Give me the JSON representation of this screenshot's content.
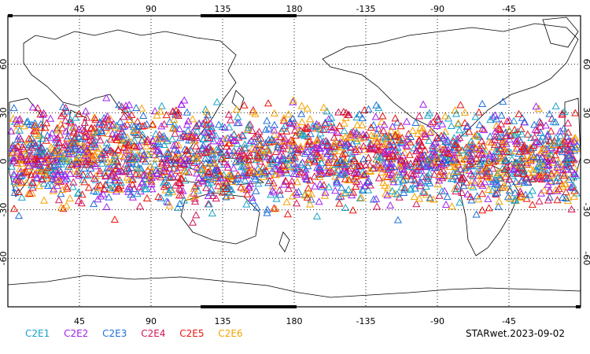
{
  "map": {
    "projection": "cylindrical",
    "lon_center": 180,
    "lat_range": [
      -90,
      90
    ],
    "grid": true,
    "top_lon_labels": [
      "45",
      "90",
      "135",
      "180",
      "-135",
      "-90",
      "-45"
    ],
    "bottom_lon_labels": [
      "45",
      "90",
      "135",
      "180",
      "-135",
      "-90",
      "-45"
    ],
    "left_lat_labels": [
      "60",
      "30",
      "0",
      "-30",
      "-60"
    ],
    "right_lat_labels": [
      "60",
      "30",
      "0",
      "-30",
      "-60"
    ],
    "observation_band_lat": [
      -40,
      45
    ],
    "marker": "triangle-icon"
  },
  "legend": {
    "items": [
      {
        "label": "C2E1",
        "color": "#17a3c8"
      },
      {
        "label": "C2E2",
        "color": "#a020f0"
      },
      {
        "label": "C2E3",
        "color": "#1e6fd9"
      },
      {
        "label": "C2E4",
        "color": "#d4145a"
      },
      {
        "label": "C2E5",
        "color": "#e8150c"
      },
      {
        "label": "C2E6",
        "color": "#f5a300"
      }
    ]
  },
  "stamp": "STARwet.2023-09-02"
}
